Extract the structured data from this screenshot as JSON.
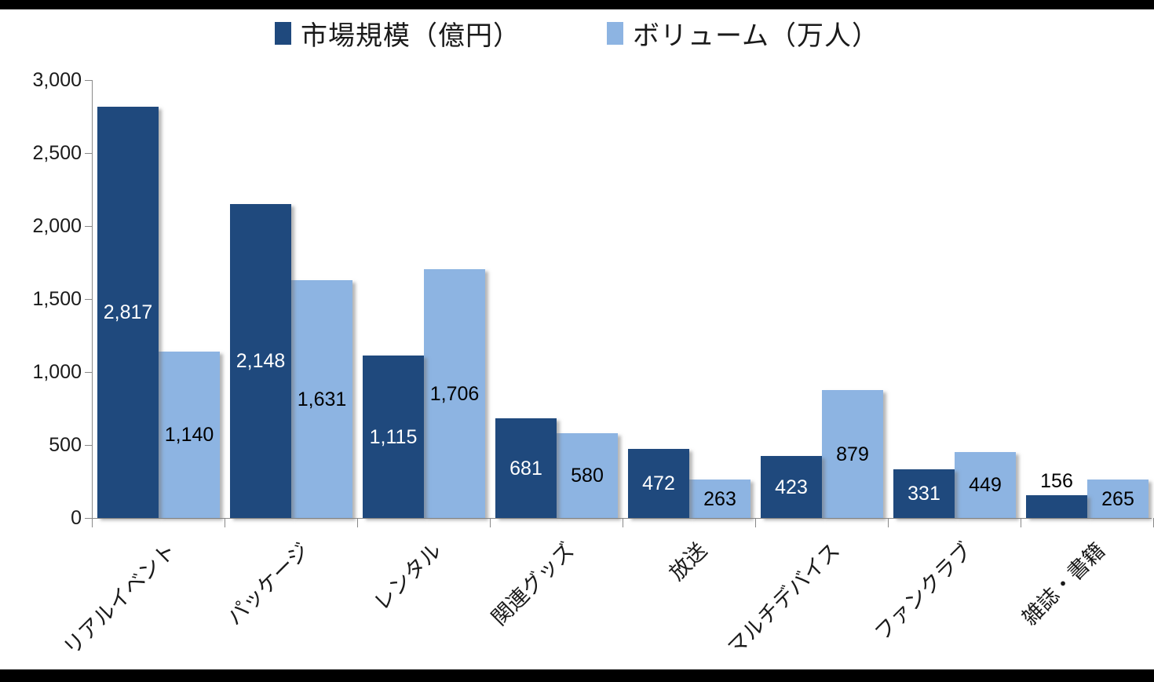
{
  "chart_data": {
    "type": "bar",
    "title": "",
    "categories": [
      "リアルイベント",
      "パッケージ",
      "レンタル",
      "関連グッズ",
      "放送",
      "マルチデバイス",
      "ファンクラブ",
      "雑誌・書籍"
    ],
    "series": [
      {
        "name": "市場規模（億円）",
        "color": "#1F497D",
        "label_color": "#FFFFFF",
        "values": [
          2817,
          2148,
          1115,
          681,
          472,
          423,
          331,
          156
        ],
        "value_labels": [
          "2,817",
          "2,148",
          "1,115",
          "681",
          "472",
          "423",
          "331",
          "156"
        ]
      },
      {
        "name": "ボリューム（万人）",
        "color": "#8DB4E2",
        "label_color": "#000000",
        "values": [
          1140,
          1631,
          1706,
          580,
          263,
          879,
          449,
          265
        ],
        "value_labels": [
          "1,140",
          "1,631",
          "1,706",
          "580",
          "263",
          "879",
          "449",
          "265"
        ]
      }
    ],
    "y_axis": {
      "min": 0,
      "max": 3000,
      "step": 500,
      "tick_labels": [
        "0",
        "500",
        "1,000",
        "1,500",
        "2,000",
        "2,500",
        "3,000"
      ]
    },
    "x_axis": {
      "label_rotation_deg": 45
    },
    "legend": {
      "position": "top"
    },
    "grid": false,
    "colors": {
      "axis": "#898989",
      "text": "#1a1a1a",
      "background": "#ffffff",
      "frame": "#000000"
    }
  }
}
